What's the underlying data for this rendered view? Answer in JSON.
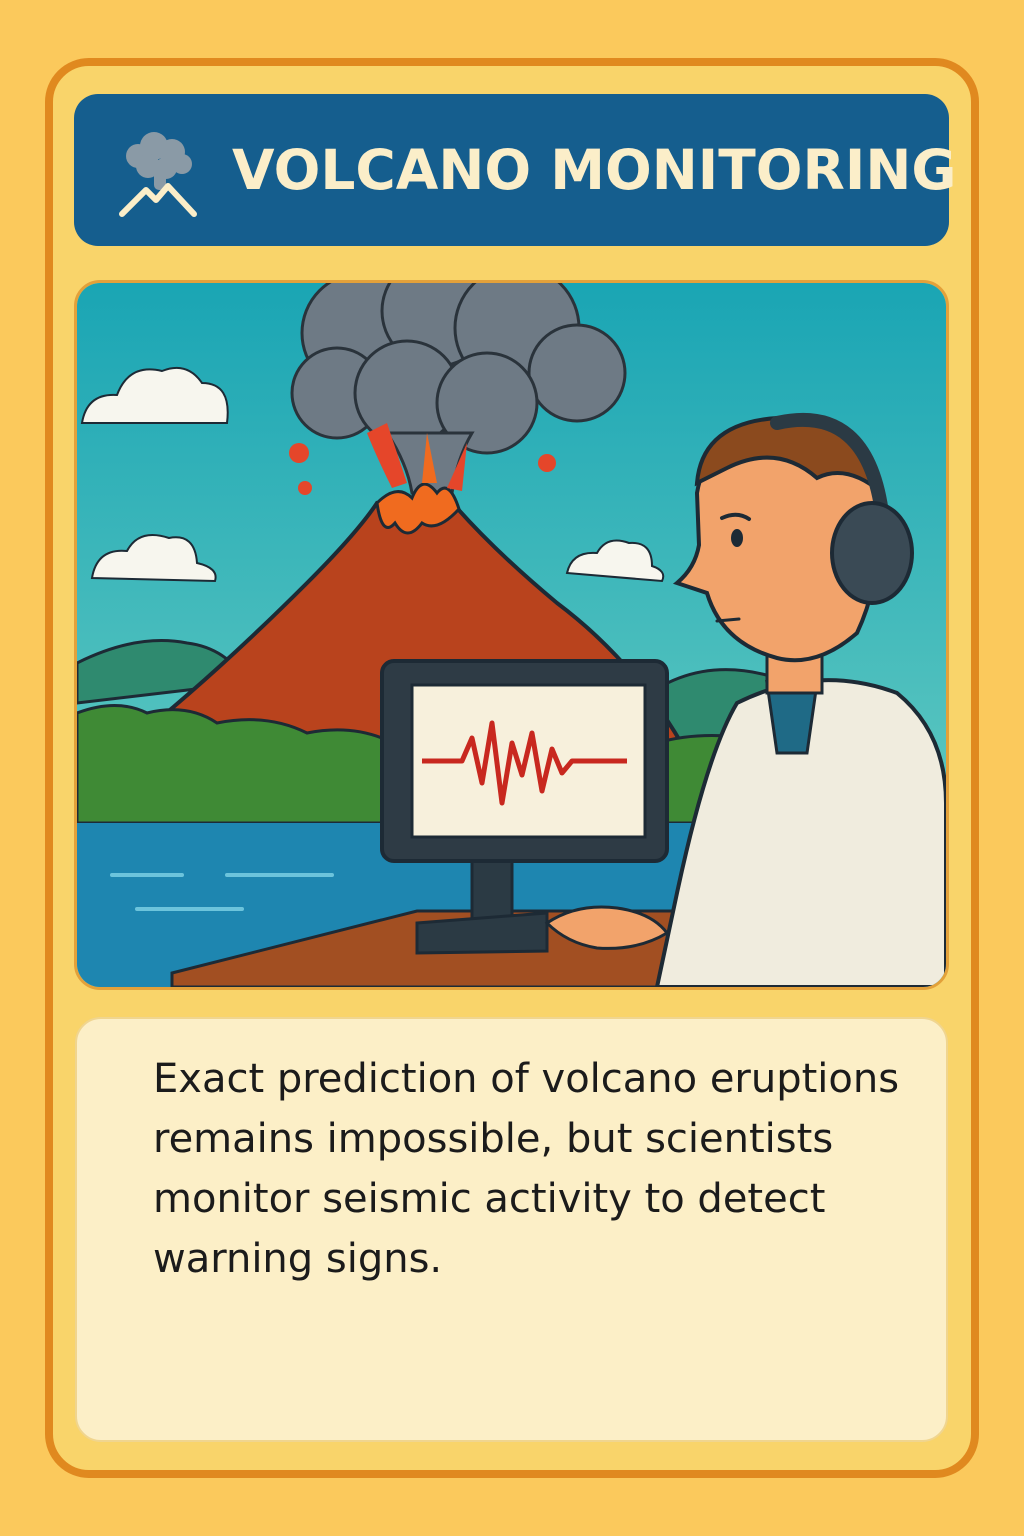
{
  "header": {
    "icon": "volcano-cloud-icon",
    "title": "VOLCANO MONITORING"
  },
  "illustration": {
    "subject": "volcano-scientist-monitoring-illustration",
    "screen_waveform_icon": "seismograph-wave-icon"
  },
  "body": {
    "fact_text": "Exact prediction of volcano eruptions remains impossible, but scientists monitor seismic activity to detect warning signs."
  },
  "colors": {
    "background": "#fbc95c",
    "card_border": "#e0891f",
    "header": "#155e8e",
    "header_text": "#fbeec9",
    "panel": "#fcefc7",
    "text": "#1b1b1b"
  }
}
